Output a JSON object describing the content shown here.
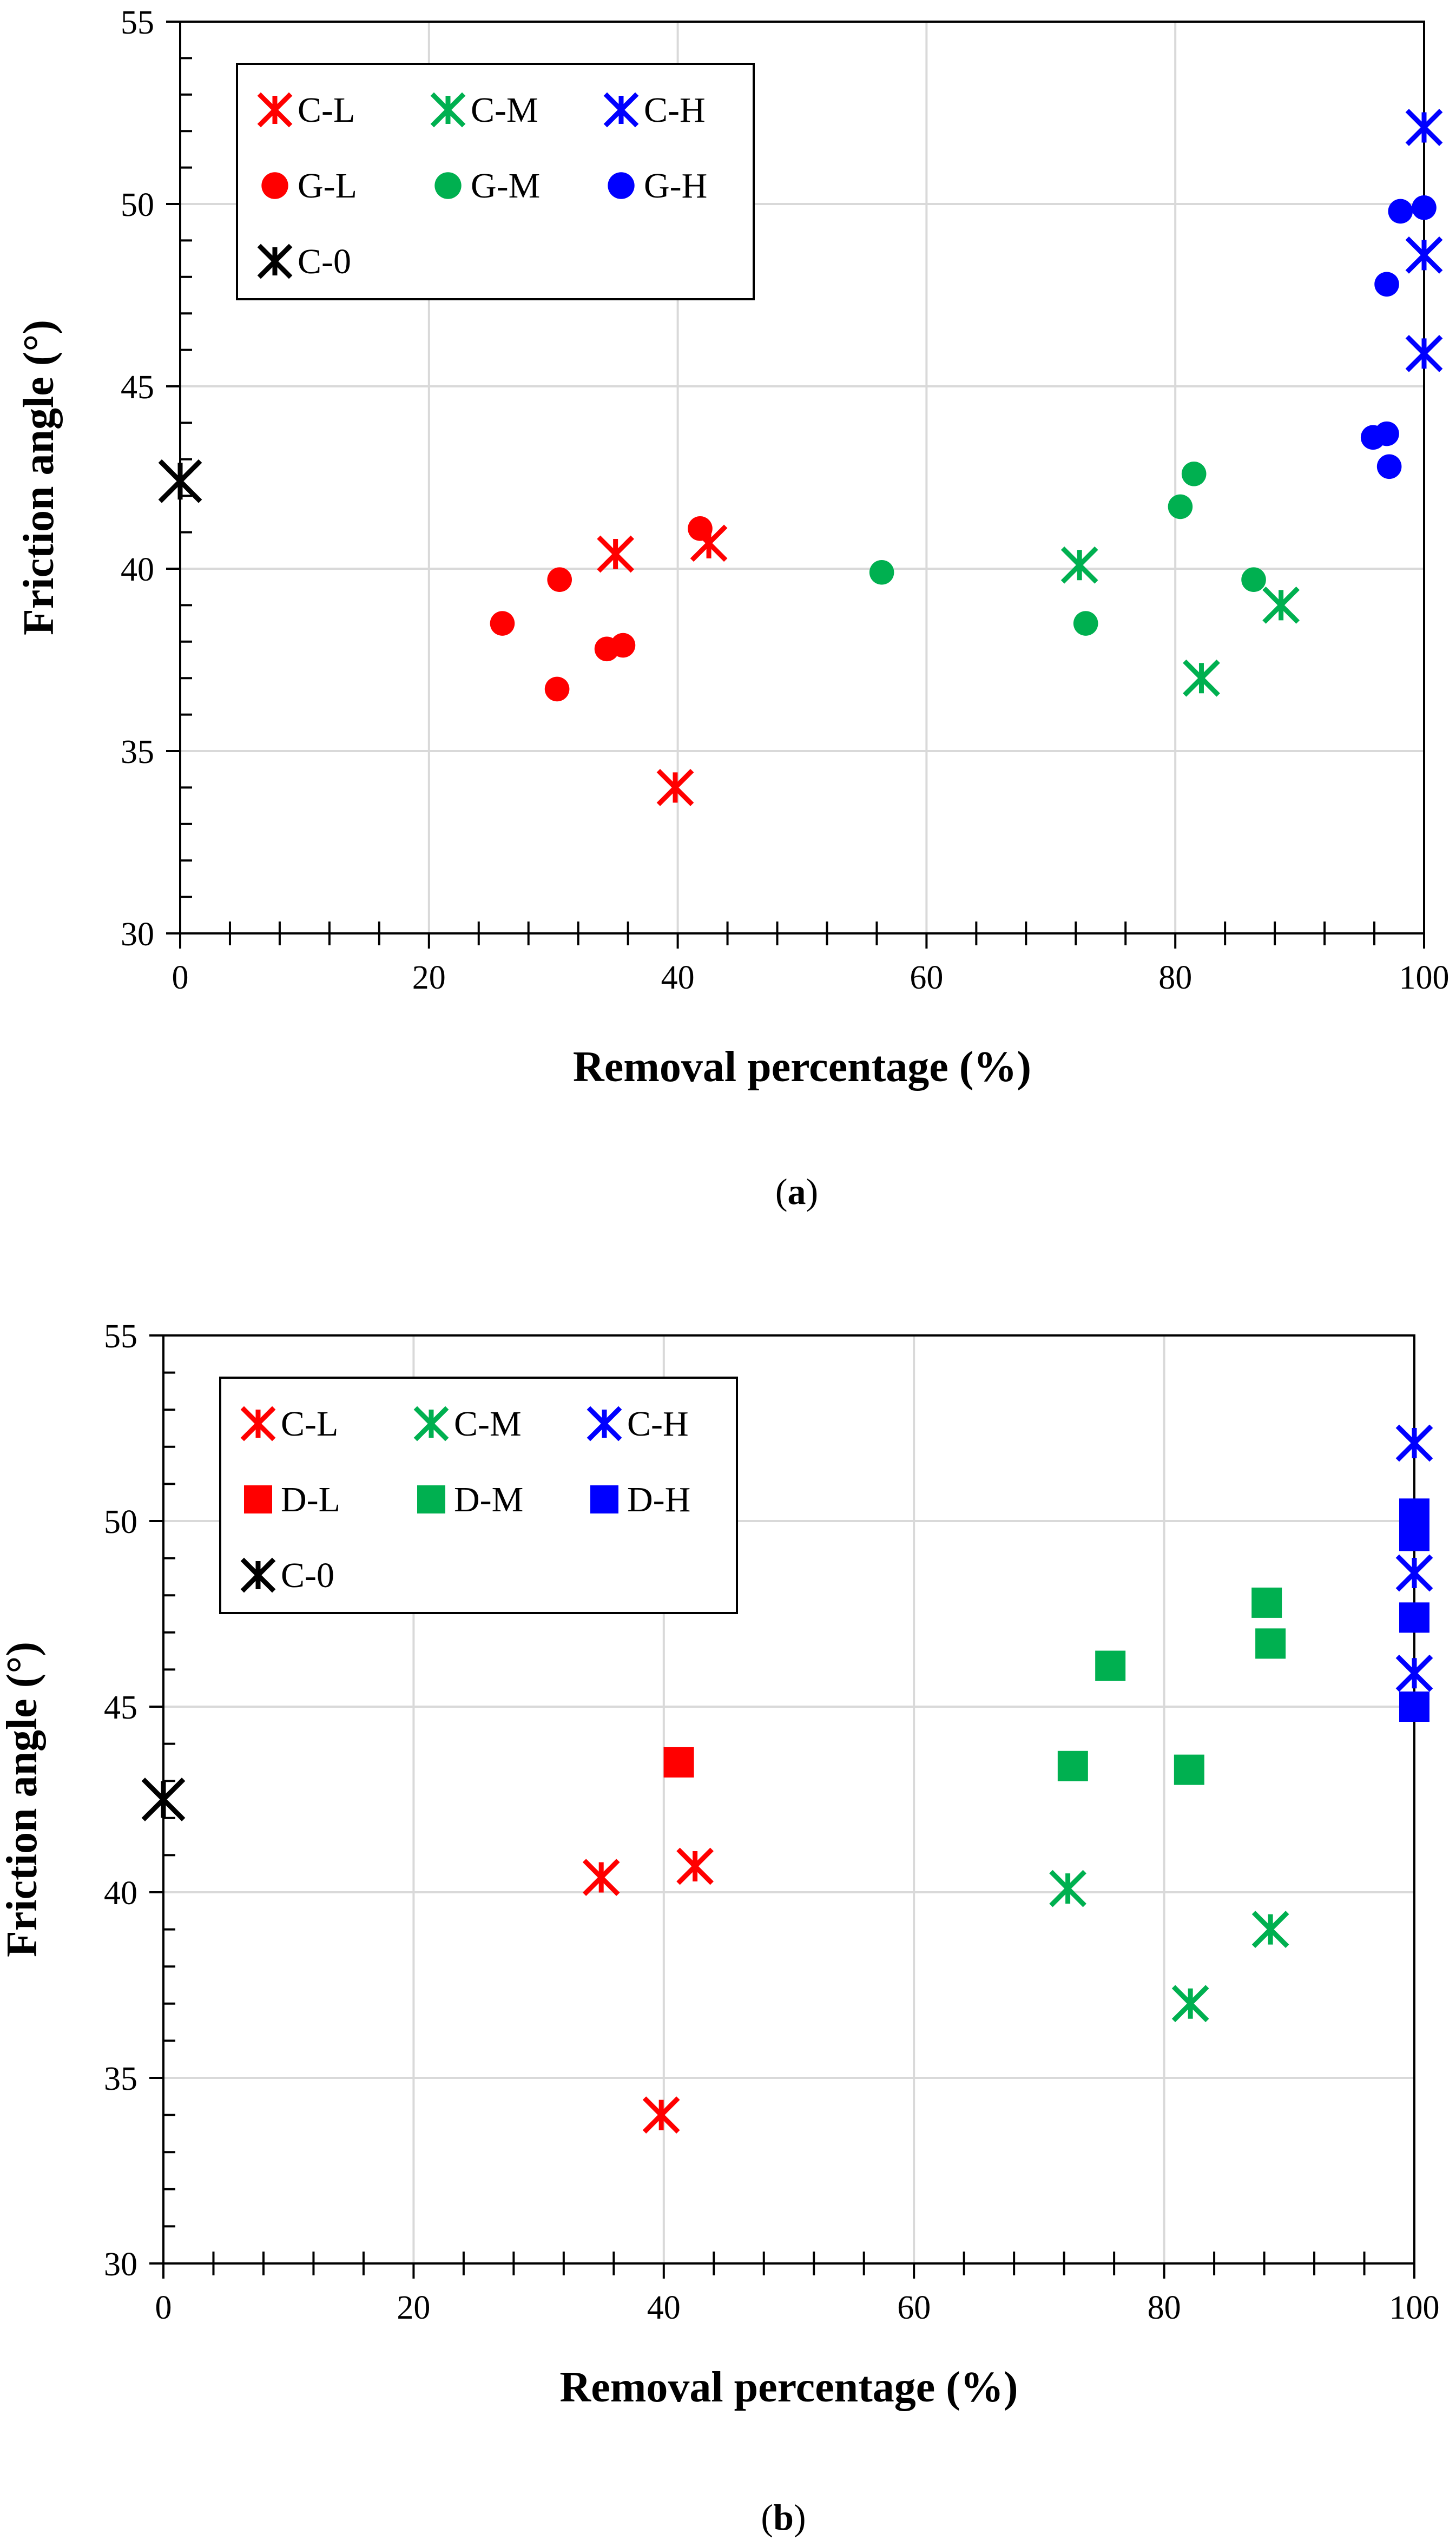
{
  "chart_data": [
    {
      "type": "scatter",
      "caption_letter": "a",
      "xlabel": "Removal percentage (%)",
      "ylabel": "Friction angle (°)",
      "xlim": [
        0,
        100
      ],
      "ylim": [
        30,
        55
      ],
      "x_ticks": [
        0,
        20,
        40,
        60,
        80,
        100
      ],
      "y_ticks": [
        30,
        35,
        40,
        45,
        50,
        55
      ],
      "grid": true,
      "legend": {
        "placement": "top-left",
        "columns": 3
      },
      "series": [
        {
          "name": "C-L",
          "marker": "asterisk",
          "color": "#ff0000",
          "points": [
            [
              35.0,
              40.4
            ],
            [
              42.5,
              40.7
            ],
            [
              39.8,
              34.0
            ]
          ]
        },
        {
          "name": "C-M",
          "marker": "asterisk",
          "color": "#00b050",
          "points": [
            [
              72.3,
              40.1
            ],
            [
              88.5,
              39.0
            ],
            [
              82.1,
              37.0
            ]
          ]
        },
        {
          "name": "C-H",
          "marker": "asterisk",
          "color": "#0000ff",
          "points": [
            [
              100,
              52.1
            ],
            [
              100,
              48.6
            ],
            [
              100,
              45.9
            ]
          ]
        },
        {
          "name": "G-L",
          "marker": "circle",
          "color": "#ff0000",
          "points": [
            [
              25.9,
              38.5
            ],
            [
              30.5,
              39.7
            ],
            [
              34.3,
              37.8
            ],
            [
              35.6,
              37.9
            ],
            [
              30.3,
              36.7
            ],
            [
              41.8,
              41.1
            ]
          ]
        },
        {
          "name": "G-M",
          "marker": "circle",
          "color": "#00b050",
          "points": [
            [
              56.4,
              39.9
            ],
            [
              72.8,
              38.5
            ],
            [
              80.4,
              41.7
            ],
            [
              81.5,
              42.6
            ],
            [
              86.3,
              39.7
            ]
          ]
        },
        {
          "name": "G-H",
          "marker": "circle",
          "color": "#0000ff",
          "points": [
            [
              98.1,
              49.8
            ],
            [
              100,
              49.9
            ],
            [
              97.0,
              47.8
            ],
            [
              95.9,
              43.6
            ],
            [
              97.0,
              43.7
            ],
            [
              97.2,
              42.8
            ]
          ]
        },
        {
          "name": "C-0",
          "marker": "asterisk",
          "color": "#000000",
          "points": [
            [
              0,
              42.4
            ]
          ]
        }
      ]
    },
    {
      "type": "scatter",
      "caption_letter": "b",
      "xlabel": "Removal percentage (%)",
      "ylabel": "Friction angle (°)",
      "xlim": [
        0,
        100
      ],
      "ylim": [
        30,
        55
      ],
      "x_ticks": [
        0,
        20,
        40,
        60,
        80,
        100
      ],
      "y_ticks": [
        30,
        35,
        40,
        45,
        50,
        55
      ],
      "grid": true,
      "legend": {
        "placement": "top-left",
        "columns": 3
      },
      "series": [
        {
          "name": "C-L",
          "marker": "asterisk",
          "color": "#ff0000",
          "points": [
            [
              35.0,
              40.4
            ],
            [
              42.5,
              40.7
            ],
            [
              39.8,
              34.0
            ]
          ]
        },
        {
          "name": "C-M",
          "marker": "asterisk",
          "color": "#00b050",
          "points": [
            [
              72.3,
              40.1
            ],
            [
              88.5,
              39.0
            ],
            [
              82.1,
              37.0
            ]
          ]
        },
        {
          "name": "C-H",
          "marker": "asterisk",
          "color": "#0000ff",
          "points": [
            [
              100,
              52.1
            ],
            [
              100,
              48.6
            ],
            [
              100,
              45.9
            ]
          ]
        },
        {
          "name": "D-L",
          "marker": "square",
          "color": "#ff0000",
          "points": [
            [
              41.2,
              43.5
            ]
          ]
        },
        {
          "name": "D-M",
          "marker": "square",
          "color": "#00b050",
          "points": [
            [
              72.7,
              43.4
            ],
            [
              75.7,
              46.1
            ],
            [
              82.0,
              43.3
            ],
            [
              88.2,
              47.8
            ],
            [
              88.5,
              46.7
            ]
          ]
        },
        {
          "name": "D-H",
          "marker": "square",
          "color": "#0000ff",
          "points": [
            [
              100,
              50.2
            ],
            [
              100,
              49.6
            ],
            [
              100,
              47.4
            ],
            [
              100,
              45.0
            ]
          ]
        },
        {
          "name": "C-0",
          "marker": "asterisk",
          "color": "#000000",
          "points": [
            [
              0,
              42.5
            ]
          ]
        }
      ]
    }
  ]
}
